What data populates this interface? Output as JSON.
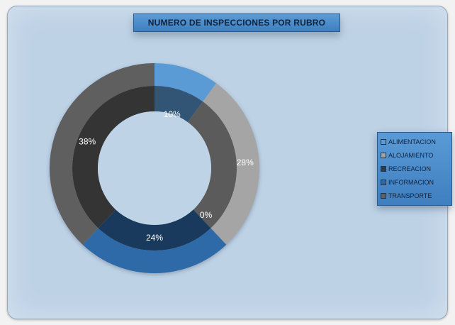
{
  "chart_data": {
    "type": "pie",
    "variant": "doughnut",
    "title": "NUMERO DE INSPECCIONES POR RUBRO",
    "categories": [
      "ALIMENTACION",
      "ALOJAMIENTO",
      "RECREACION",
      "INFORMACION",
      "TRANSPORTE"
    ],
    "values": [
      10,
      28,
      0,
      24,
      38
    ],
    "labels": [
      "10%",
      "28%",
      "0%",
      "24%",
      "38%"
    ],
    "colors": [
      "#5a9bd5",
      "#a5a5a5",
      "#2f3d4c",
      "#2e69a8",
      "#5f5f5f"
    ],
    "legend_position": "right"
  }
}
